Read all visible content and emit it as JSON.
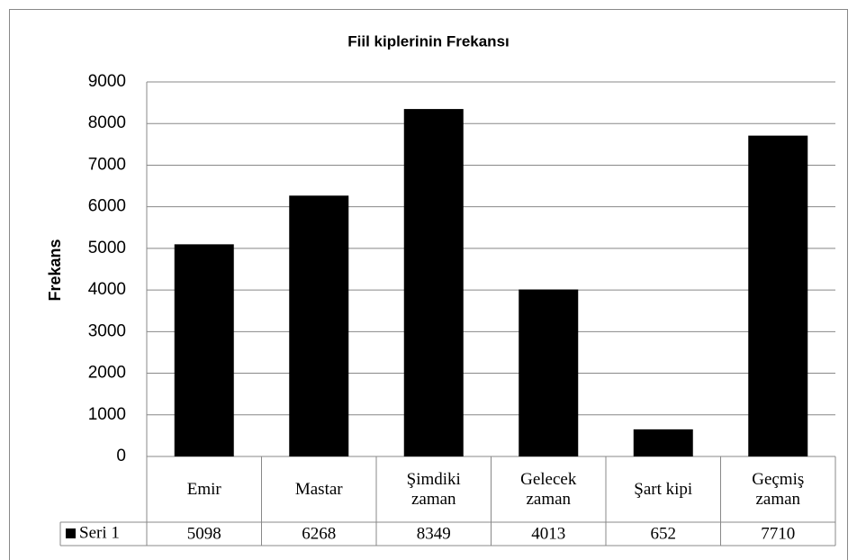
{
  "chart_data": {
    "type": "bar",
    "title": "Fiil kiplerinin Frekansı",
    "y_label": "Frekans",
    "categories": [
      "Emir",
      "Mastar",
      "Şimdiki zaman",
      "Gelecek zaman",
      "Şart kipi",
      "Geçmiş zaman"
    ],
    "series": [
      {
        "name": "Seri 1",
        "color": "#000000",
        "values": [
          5098,
          6268,
          8349,
          4013,
          652,
          7710
        ]
      }
    ],
    "ylim": [
      0,
      9000
    ],
    "yticks": [
      0,
      1000,
      2000,
      3000,
      4000,
      5000,
      6000,
      7000,
      8000,
      9000
    ],
    "grid": true,
    "data_table": true
  }
}
